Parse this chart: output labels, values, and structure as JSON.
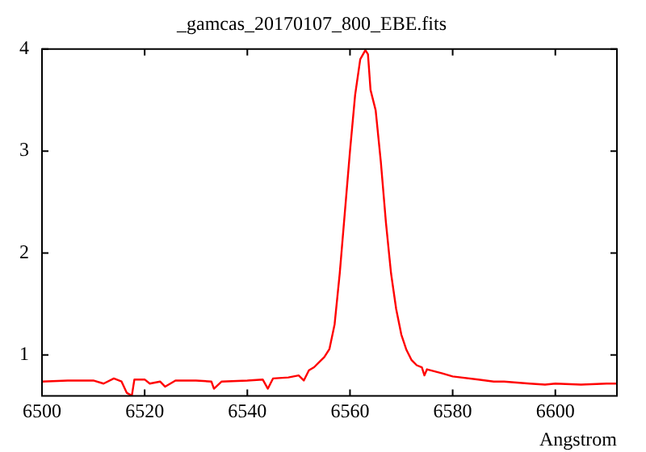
{
  "chart_data": {
    "type": "line",
    "title": "_gamcas_20170107_800_EBE.fits",
    "xlabel": "Angstrom",
    "x": [
      6500,
      6505,
      6510,
      6512,
      6514,
      6515.5,
      6516.5,
      6517.5,
      6518,
      6520,
      6521,
      6523,
      6524,
      6526,
      6530,
      6533,
      6533.5,
      6535,
      6540,
      6543,
      6544,
      6545,
      6548,
      6550,
      6551,
      6552,
      6553,
      6554,
      6555,
      6556,
      6557,
      6558,
      6559,
      6560,
      6561,
      6562,
      6563,
      6563.5,
      6564,
      6565,
      6566,
      6567,
      6568,
      6569,
      6570,
      6571,
      6572,
      6573,
      6574,
      6574.5,
      6575,
      6578,
      6580,
      6585,
      6588,
      6590,
      6595,
      6598,
      6600,
      6605,
      6610,
      6612
    ],
    "series": [
      {
        "color": "#ff0000",
        "values": [
          0.74,
          0.75,
          0.75,
          0.72,
          0.77,
          0.74,
          0.63,
          0.6,
          0.76,
          0.76,
          0.72,
          0.74,
          0.69,
          0.75,
          0.75,
          0.74,
          0.67,
          0.74,
          0.75,
          0.76,
          0.67,
          0.77,
          0.78,
          0.8,
          0.75,
          0.85,
          0.88,
          0.93,
          0.98,
          1.06,
          1.3,
          1.8,
          2.4,
          3.0,
          3.55,
          3.9,
          3.99,
          3.95,
          3.6,
          3.4,
          2.9,
          2.3,
          1.8,
          1.45,
          1.2,
          1.05,
          0.95,
          0.9,
          0.88,
          0.8,
          0.86,
          0.82,
          0.79,
          0.76,
          0.74,
          0.74,
          0.72,
          0.71,
          0.72,
          0.71,
          0.72,
          0.72
        ]
      }
    ],
    "xlim": [
      6500,
      6612
    ],
    "xticks": [
      6500,
      6520,
      6540,
      6560,
      6580,
      6600
    ],
    "ylim": [
      0.6,
      4
    ],
    "yticks": [
      1,
      2,
      3,
      4
    ],
    "grid": false,
    "legend": false,
    "marker": "none",
    "line_style": "solid"
  }
}
